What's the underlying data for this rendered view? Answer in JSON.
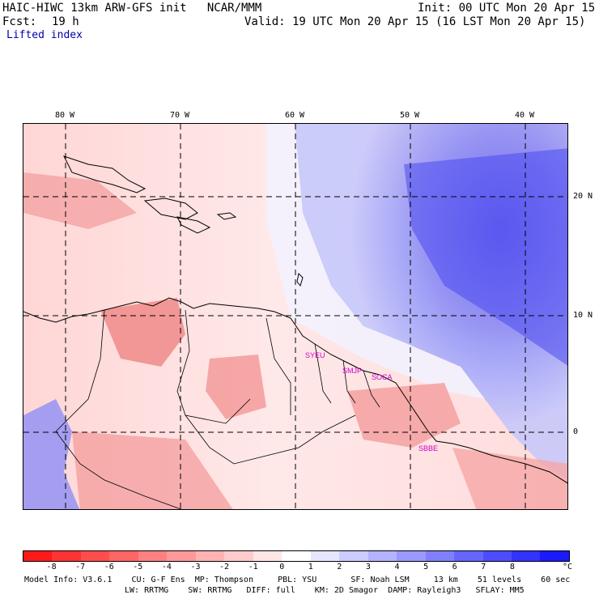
{
  "header": {
    "title": "HAIC-HIWC 13km ARW-GFS init   NCAR/MMM",
    "init": "Init: 00 UTC Mon 20 Apr 15",
    "fcst_label": "Fcst:",
    "fcst_value": "19 h",
    "valid": "Valid: 19 UTC Mon 20 Apr 15 (16 LST Mon 20 Apr 15)",
    "field": "Lifted index"
  },
  "map": {
    "lon_labels": [
      "80 W",
      "70 W",
      "60 W",
      "50 W",
      "40 W"
    ],
    "lat_labels": [
      "20 N",
      "10 N",
      "0"
    ],
    "stations": [
      "SYEU",
      "SMJP",
      "SOCA",
      "SBBE"
    ],
    "station_color": "#cc00cc"
  },
  "colorbar": {
    "ticks": [
      "-8",
      "-7",
      "-6",
      "-5",
      "-4",
      "-3",
      "-2",
      "-1",
      "0",
      "1",
      "2",
      "3",
      "4",
      "5",
      "6",
      "7",
      "8"
    ],
    "unit": "°C",
    "colors": [
      "#ff1a1a",
      "#ff3333",
      "#ff4d4d",
      "#ff6666",
      "#ff8080",
      "#ff9999",
      "#ffb3b3",
      "#ffcccc",
      "#ffe6e6",
      "#ffffff",
      "#e6e6ff",
      "#ccccff",
      "#b3b3ff",
      "#9999ff",
      "#8080ff",
      "#6666ff",
      "#4d4dff",
      "#3333ff",
      "#1a1aff"
    ]
  },
  "info": {
    "line1": "Model Info: V3.6.1    CU: G-F Ens  MP: Thompson     PBL: YSU       SF: Noah LSM     13 km    51 levels    60 sec",
    "line2": "LW: RRTMG    SW: RRTMG   DIFF: full    KM: 2D Smagor  DAMP: Rayleigh3   SFLAY: MM5"
  }
}
